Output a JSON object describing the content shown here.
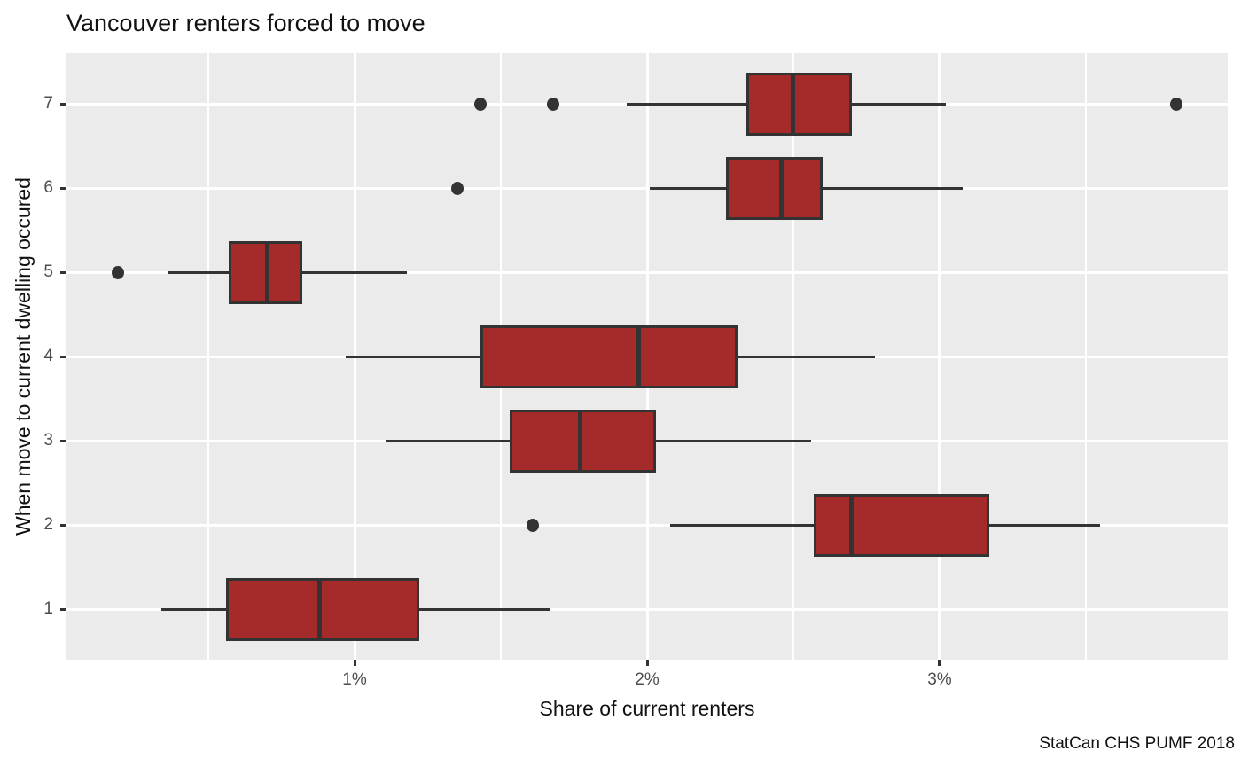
{
  "chart_data": {
    "type": "boxplot",
    "orientation": "horizontal",
    "title": "Vancouver renters forced to move",
    "xlabel": "Share of current renters",
    "ylabel": "When move to current dwelling occured",
    "caption": "StatCan CHS PUMF 2018",
    "categories": [
      "1",
      "2",
      "3",
      "4",
      "5",
      "6",
      "7"
    ],
    "x_ticks": [
      {
        "label": "1%",
        "value": 1
      },
      {
        "label": "2%",
        "value": 2
      },
      {
        "label": "3%",
        "value": 3
      }
    ],
    "x_minor_gridlines": [
      0.5,
      1.5,
      2.5,
      3.5
    ],
    "xlim": [
      0.015,
      3.985
    ],
    "x_unit": "percent of current renters",
    "series": [
      {
        "category": "1",
        "whisker_low": 0.34,
        "q1": 0.56,
        "median": 0.88,
        "q3": 1.22,
        "whisker_high": 1.67,
        "outliers": []
      },
      {
        "category": "2",
        "whisker_low": 2.08,
        "q1": 2.57,
        "median": 2.7,
        "q3": 3.17,
        "whisker_high": 3.55,
        "outliers": [
          1.61
        ]
      },
      {
        "category": "3",
        "whisker_low": 1.11,
        "q1": 1.53,
        "median": 1.77,
        "q3": 2.03,
        "whisker_high": 2.56,
        "outliers": []
      },
      {
        "category": "4",
        "whisker_low": 0.97,
        "q1": 1.43,
        "median": 1.97,
        "q3": 2.31,
        "whisker_high": 2.78,
        "outliers": []
      },
      {
        "category": "5",
        "whisker_low": 0.36,
        "q1": 0.57,
        "median": 0.7,
        "q3": 0.82,
        "whisker_high": 1.18,
        "outliers": [
          0.19
        ]
      },
      {
        "category": "6",
        "whisker_low": 2.01,
        "q1": 2.27,
        "median": 2.46,
        "q3": 2.6,
        "whisker_high": 3.08,
        "outliers": [
          1.35
        ]
      },
      {
        "category": "7",
        "whisker_low": 1.93,
        "q1": 2.34,
        "median": 2.5,
        "q3": 2.7,
        "whisker_high": 3.02,
        "outliers": [
          1.43,
          1.68,
          3.81
        ]
      }
    ],
    "layout_hints": {
      "grid": "major white vertical at 1%,2%,3%; minor white vertical at 0.5% steps; white horizontal at each category",
      "legend": "none",
      "panel_style": "ggplot2 grey"
    },
    "colors": {
      "box_fill": "#A52A2A",
      "box_stroke": "#333333",
      "whisker": "#333333",
      "outlier": "#333333",
      "panel_background": "#EBEBEB",
      "gridline": "#FFFFFF",
      "tick_label": "#4D4D4D",
      "text": "#111111",
      "page_background": "#FFFFFF"
    }
  }
}
